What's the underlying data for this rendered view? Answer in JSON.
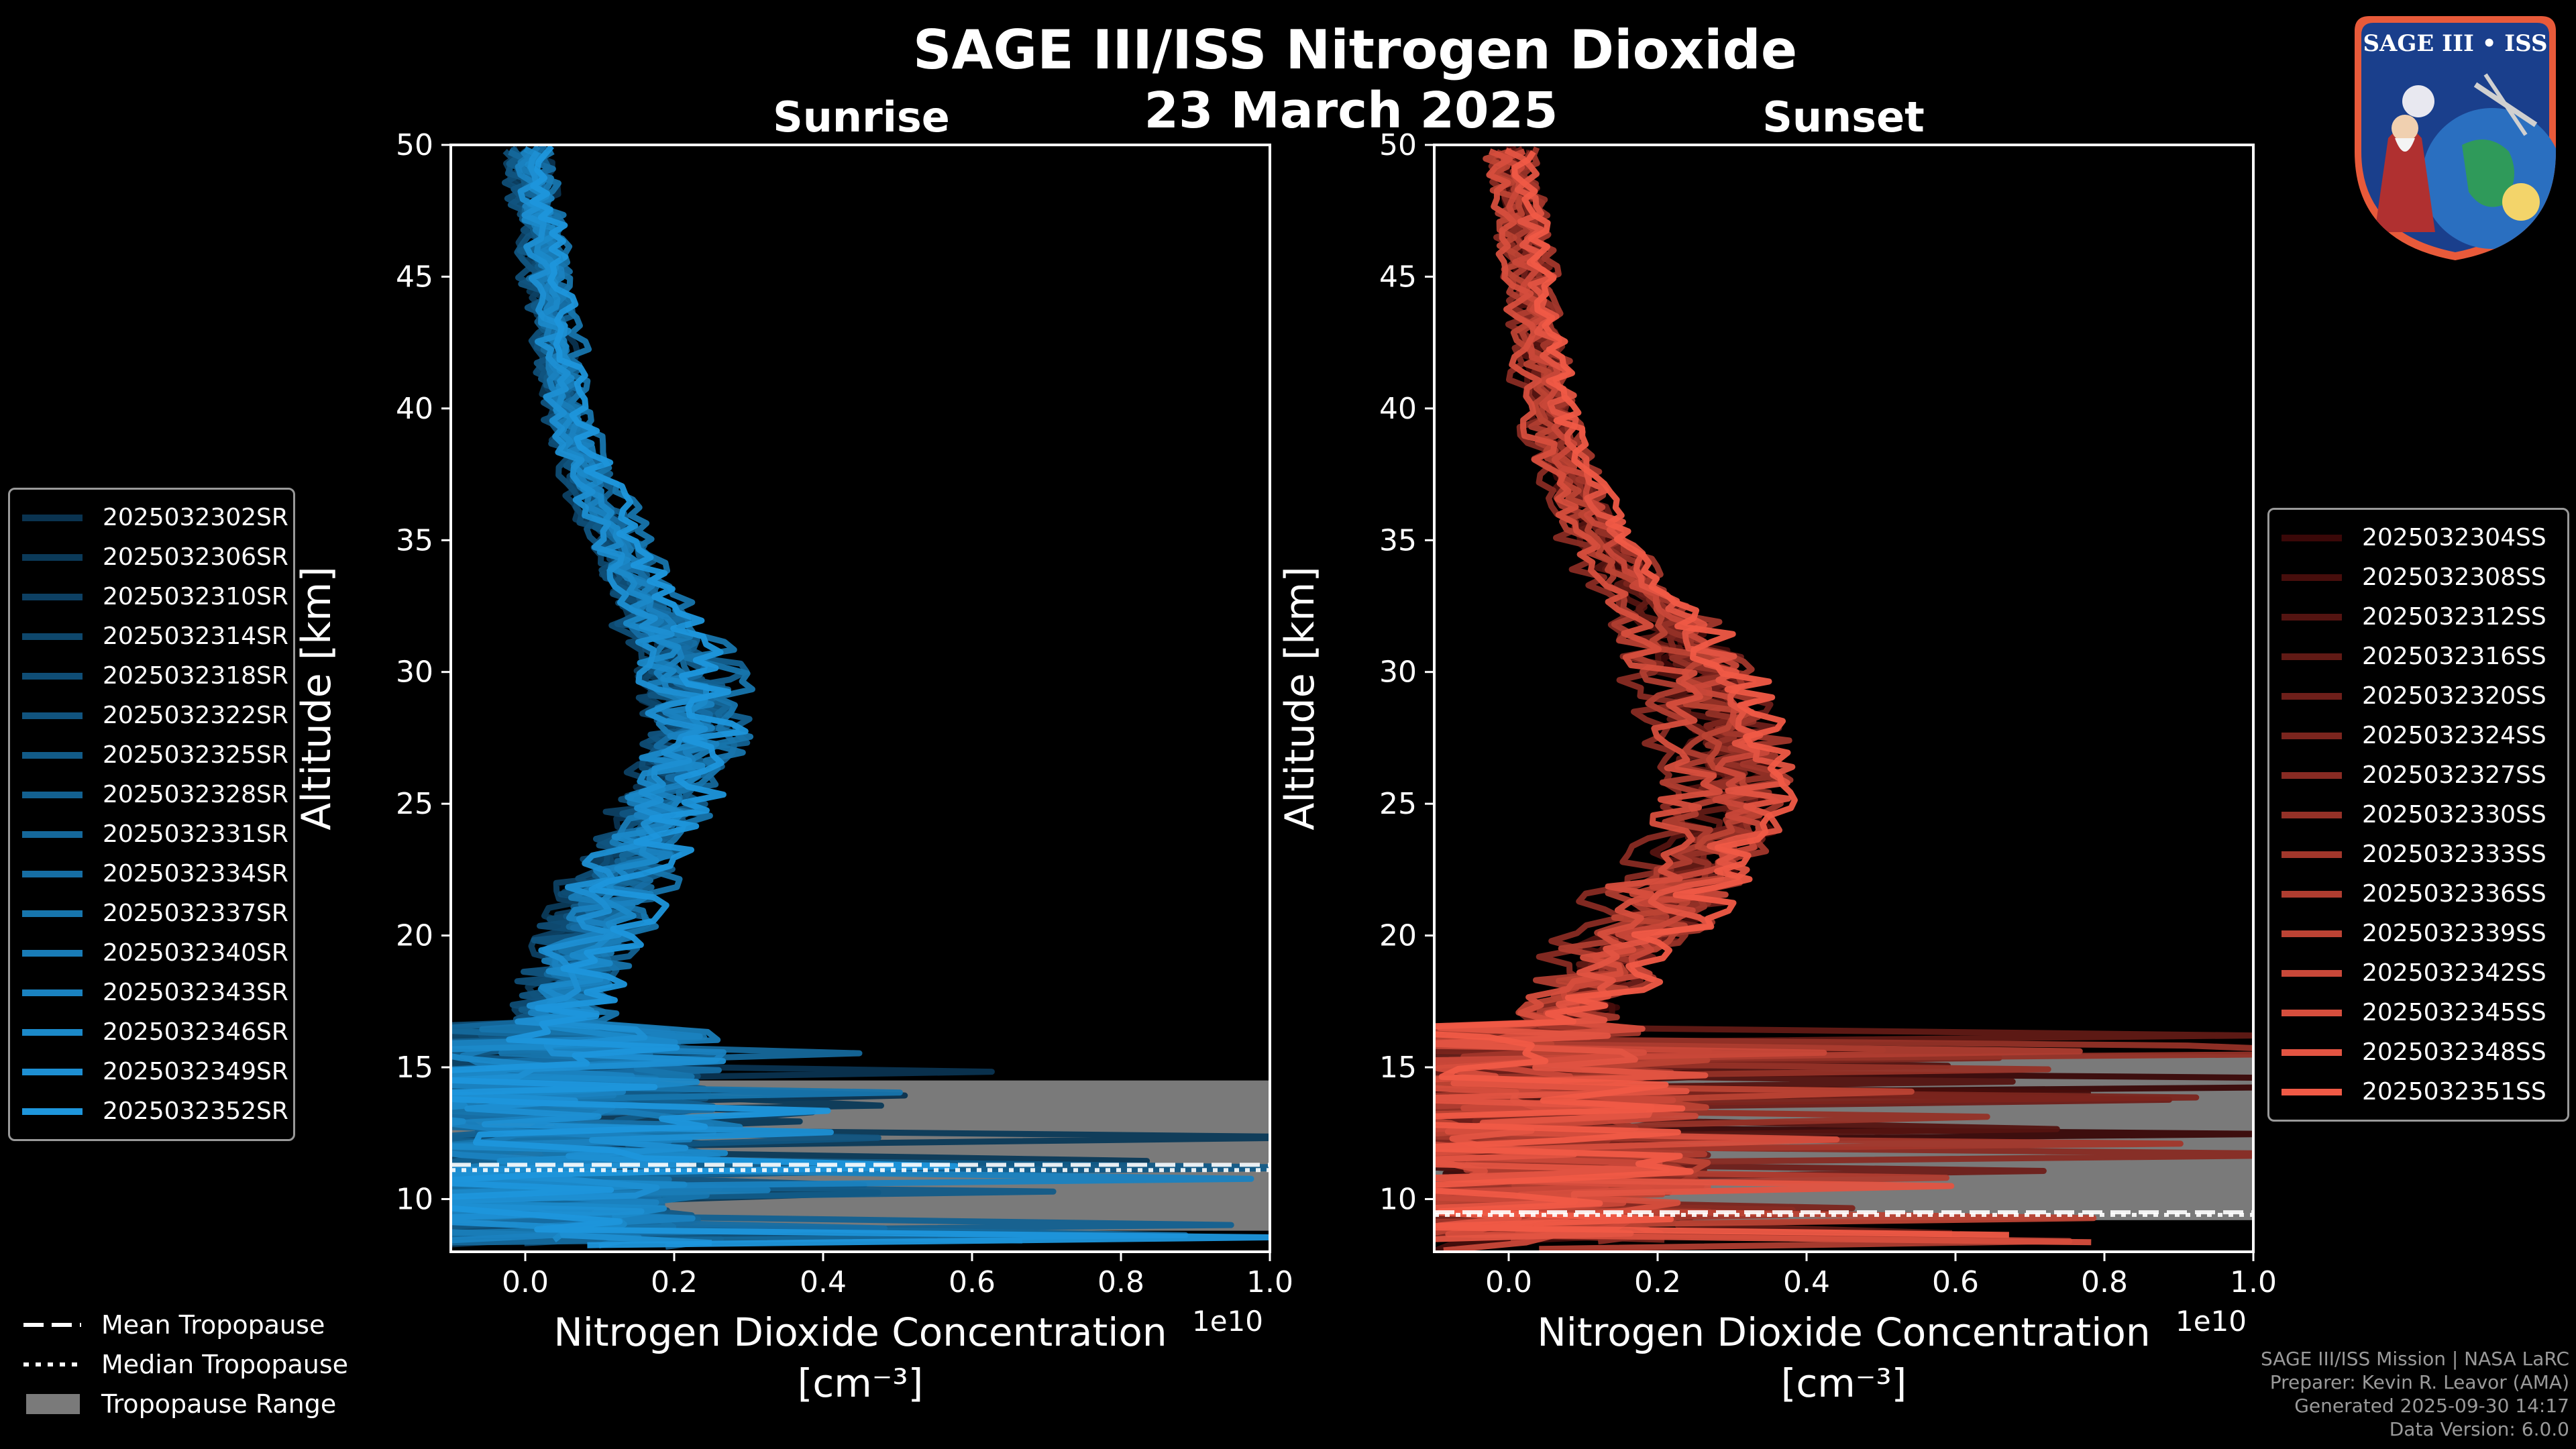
{
  "header": {
    "title": "SAGE III/ISS Nitrogen Dioxide",
    "date": "23 March 2025",
    "left_panel_title": "Sunrise",
    "right_panel_title": "Sunset"
  },
  "logo": {
    "text": "SAGE III • ISS",
    "icon": "mission-patch"
  },
  "axis": {
    "xlabel_line1": "Nitrogen Dioxide Concentration",
    "xlabel_line2": "[cm⁻³]",
    "ylabel": "Altitude [km]",
    "xscale_text": "1e10",
    "xticks": [
      "0.0",
      "0.2",
      "0.4",
      "0.6",
      "0.8",
      "1.0"
    ],
    "yticks": [
      "10",
      "15",
      "20",
      "25",
      "30",
      "35",
      "40",
      "45",
      "50"
    ]
  },
  "legend_sunrise": [
    "2025032302SR",
    "2025032306SR",
    "2025032310SR",
    "2025032314SR",
    "2025032318SR",
    "2025032322SR",
    "2025032325SR",
    "2025032328SR",
    "2025032331SR",
    "2025032334SR",
    "2025032337SR",
    "2025032340SR",
    "2025032343SR",
    "2025032346SR",
    "2025032349SR",
    "2025032352SR"
  ],
  "legend_sunset": [
    "2025032304SS",
    "2025032308SS",
    "2025032312SS",
    "2025032316SS",
    "2025032320SS",
    "2025032324SS",
    "2025032327SS",
    "2025032330SS",
    "2025032333SS",
    "2025032336SS",
    "2025032339SS",
    "2025032342SS",
    "2025032345SS",
    "2025032348SS",
    "2025032351SS"
  ],
  "bottom_legend": {
    "mean": "Mean Tropopause",
    "median": "Median Tropopause",
    "range": "Tropopause Range"
  },
  "credits": {
    "line1": "SAGE III/ISS Mission | NASA LaRC",
    "line2": "Preparer: Kevin R. Leavor (AMA)",
    "line3": "Generated 2025-09-30 14:17",
    "line4": "Data Version: 6.0.0"
  },
  "colors": {
    "sunrise_dark": "#0a3350",
    "sunrise_light": "#1e96dc",
    "sunset_dark": "#3a0808",
    "sunset_light": "#f05a46",
    "tropopause_range": "#7a7a7a"
  },
  "chart_data": [
    {
      "type": "line",
      "title": "Sunrise",
      "xlabel": "Nitrogen Dioxide Concentration [cm⁻³]",
      "ylabel": "Altitude [km]",
      "x_scale_factor": 10000000000.0,
      "xlim": [
        -0.1,
        1.0
      ],
      "ylim": [
        8,
        50
      ],
      "tropopause_range_km": [
        8.8,
        14.5
      ],
      "mean_tropopause_km": 11.3,
      "median_tropopause_km": 11.1,
      "profile_altitude_km": [
        10,
        12,
        14,
        16,
        18,
        20,
        22,
        24,
        26,
        28,
        30,
        32,
        34,
        36,
        38,
        40,
        42,
        44,
        46,
        48,
        50
      ],
      "median_profile_x1e10": [
        0.05,
        0.06,
        0.05,
        0.04,
        0.06,
        0.08,
        0.12,
        0.16,
        0.2,
        0.22,
        0.21,
        0.17,
        0.13,
        0.1,
        0.07,
        0.05,
        0.04,
        0.03,
        0.02,
        0.01,
        0.0
      ],
      "series_count": 16
    },
    {
      "type": "line",
      "title": "Sunset",
      "xlabel": "Nitrogen Dioxide Concentration [cm⁻³]",
      "ylabel": "Altitude [km]",
      "x_scale_factor": 10000000000.0,
      "xlim": [
        -0.1,
        1.0
      ],
      "ylim": [
        8,
        50
      ],
      "tropopause_range_km": [
        9.2,
        15.5
      ],
      "mean_tropopause_km": 9.5,
      "median_tropopause_km": 9.4,
      "profile_altitude_km": [
        10,
        12,
        14,
        16,
        18,
        20,
        22,
        24,
        26,
        28,
        30,
        32,
        34,
        36,
        38,
        40,
        42,
        44,
        46,
        48,
        50
      ],
      "median_profile_x1e10": [
        0.05,
        0.06,
        0.06,
        0.05,
        0.1,
        0.16,
        0.22,
        0.27,
        0.28,
        0.27,
        0.24,
        0.19,
        0.14,
        0.1,
        0.07,
        0.05,
        0.04,
        0.03,
        0.02,
        0.01,
        0.0
      ],
      "series_count": 15
    }
  ]
}
